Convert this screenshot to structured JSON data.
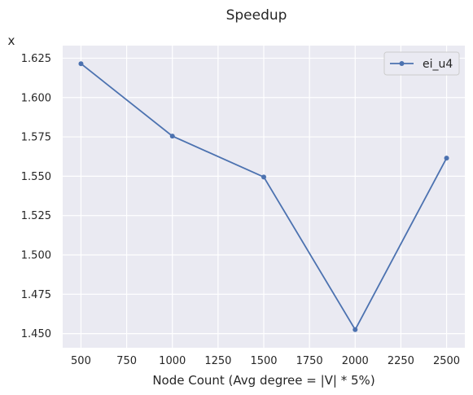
{
  "chart_data": {
    "type": "line",
    "title": "Speedup",
    "xlabel": "Node Count (Avg degree = |V| * 5%)",
    "ylabel": "x",
    "x": [
      500,
      1000,
      1500,
      2000,
      2500
    ],
    "series": [
      {
        "name": "ei_u4",
        "values": [
          1.6215,
          1.5755,
          1.5495,
          1.4525,
          1.5615
        ],
        "color": "#4c72b0",
        "marker": "circle"
      }
    ],
    "xlim": [
      400,
      2600
    ],
    "ylim": [
      1.441,
      1.633
    ],
    "x_ticks": [
      "500",
      "750",
      "1000",
      "1250",
      "1500",
      "1750",
      "2000",
      "2250",
      "2500"
    ],
    "y_ticks": [
      "1.450",
      "1.475",
      "1.500",
      "1.525",
      "1.550",
      "1.575",
      "1.600",
      "1.625"
    ],
    "grid": true,
    "legend_position": "top-right",
    "background_color": "#eaeaf2",
    "grid_color": "#ffffff"
  }
}
